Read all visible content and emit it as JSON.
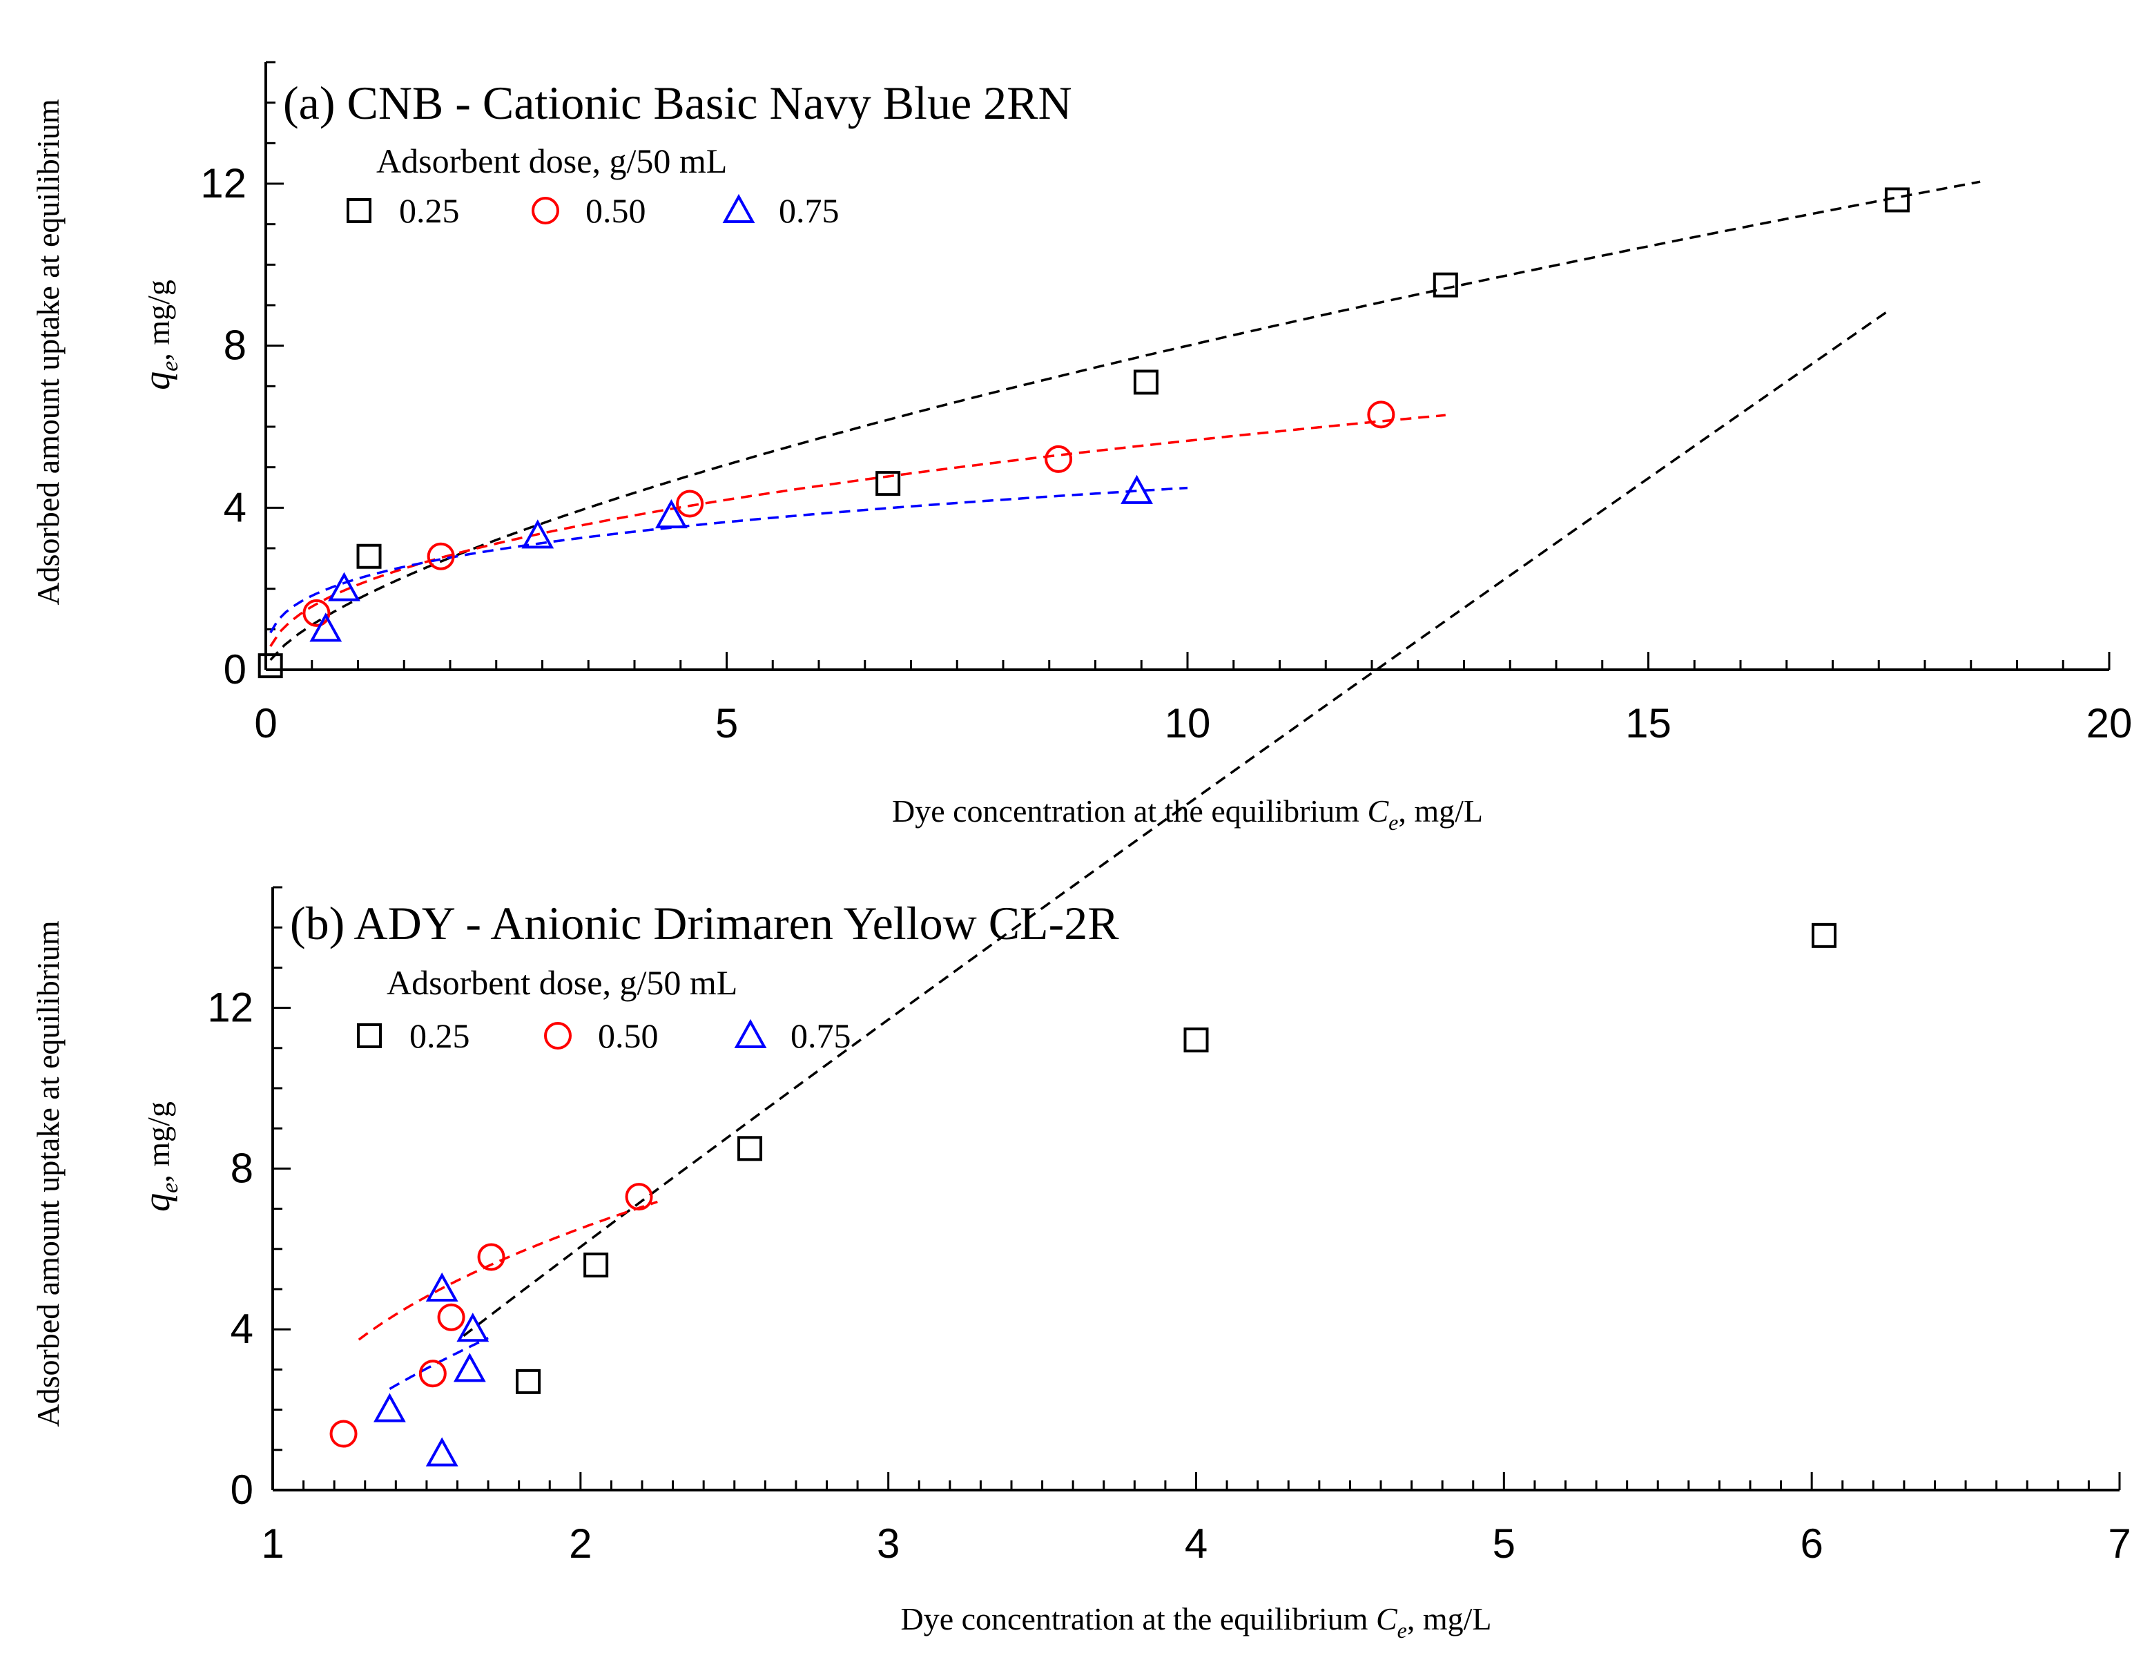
{
  "colors": {
    "s025": "#000000",
    "s050": "#ff0000",
    "s075": "#0000ff"
  },
  "chart_data": [
    {
      "type": "scatter",
      "title": "(a) CNB - Cationic Basic Navy Blue 2RN",
      "legend_title": "Adsorbent dose, g/50 mL",
      "xlabel": "Dye concentration at the equilibrium Ce, mg/L",
      "xlabel_main": "Dye concentration at the equilibrium ",
      "xlabel_var": "C",
      "xlabel_sub": "e",
      "xlabel_unit": ", mg/L",
      "ylabel_outer": "Adsorbed amount uptake at equilibrium",
      "ylabel_var": "q",
      "ylabel_sub": "e",
      "ylabel_unit": ", mg/g",
      "xlim": [
        0,
        20
      ],
      "ylim": [
        0,
        15
      ],
      "xticks": [
        "0",
        "5",
        "10",
        "15",
        "20"
      ],
      "yticks": [
        "0",
        "4",
        "8",
        "12"
      ],
      "series": [
        {
          "name": "0.25",
          "marker": "square",
          "color": "#000000",
          "x": [
            0.05,
            1.12,
            6.75,
            9.55,
            12.8,
            17.7
          ],
          "y": [
            0.1,
            2.8,
            4.6,
            7.1,
            9.5,
            11.6
          ],
          "fit": {
            "a": 1.75,
            "b": 0.66,
            "x0": 0.05,
            "x1": 18.6
          }
        },
        {
          "name": "0.50",
          "marker": "circle",
          "color": "#ff0000",
          "x": [
            0.55,
            1.9,
            4.6,
            8.6,
            12.1
          ],
          "y": [
            1.4,
            2.8,
            4.1,
            5.2,
            6.3
          ],
          "fit": {
            "a": 2.1,
            "b": 0.43,
            "x0": 0.05,
            "x1": 12.8
          }
        },
        {
          "name": "0.75",
          "marker": "triangle",
          "color": "#0000ff",
          "x": [
            0.65,
            0.85,
            2.95,
            4.4,
            9.45
          ],
          "y": [
            1.0,
            2.0,
            3.3,
            3.8,
            4.4
          ],
          "fit": {
            "a": 2.25,
            "b": 0.3,
            "x0": 0.05,
            "x1": 10.0
          }
        }
      ]
    },
    {
      "type": "scatter",
      "title": "(b) ADY - Anionic Drimaren Yellow CL-2R",
      "legend_title": "Adsorbent dose, g/50 mL",
      "xlabel": "Dye concentration at the equilibrium Ce, mg/L",
      "xlabel_main": "Dye concentration at the equilibrium ",
      "xlabel_var": "C",
      "xlabel_sub": "e",
      "xlabel_unit": ", mg/L",
      "ylabel_outer": "Adsorbed amount uptake at equilibrium",
      "ylabel_var": "q",
      "ylabel_sub": "e",
      "ylabel_unit": ", mg/g",
      "xlim": [
        1,
        7
      ],
      "ylim": [
        0,
        15
      ],
      "xticks": [
        "1",
        "2",
        "3",
        "4",
        "5",
        "6",
        "7"
      ],
      "yticks": [
        "0",
        "4",
        "8",
        "12"
      ],
      "series": [
        {
          "name": "0.25",
          "marker": "square",
          "color": "#000000",
          "x": [
            1.83,
            2.05,
            2.55,
            4.0,
            6.04
          ],
          "y": [
            2.7,
            5.6,
            8.5,
            11.2,
            13.8
          ],
          "fit": {
            "a": 2.2,
            "b": 1.05,
            "x0": 1.62,
            "x1": 6.25
          }
        },
        {
          "name": "0.50",
          "marker": "circle",
          "color": "#ff0000",
          "x": [
            1.23,
            1.52,
            1.58,
            1.71,
            2.19
          ],
          "y": [
            1.4,
            2.9,
            4.3,
            5.8,
            7.3
          ],
          "fit": {
            "a": 1.55,
            "b": 2.3,
            "x0": 1.28,
            "x1": 2.25
          }
        },
        {
          "name": "0.75",
          "marker": "triangle",
          "color": "#0000ff",
          "x": [
            1.38,
            1.55,
            1.55,
            1.64,
            1.65
          ],
          "y": [
            2.0,
            0.9,
            5.0,
            3.0,
            4.0
          ],
          "fit": {
            "a": 1.6,
            "b": 1.5,
            "x0": 1.38,
            "x1": 1.7
          }
        }
      ]
    }
  ]
}
